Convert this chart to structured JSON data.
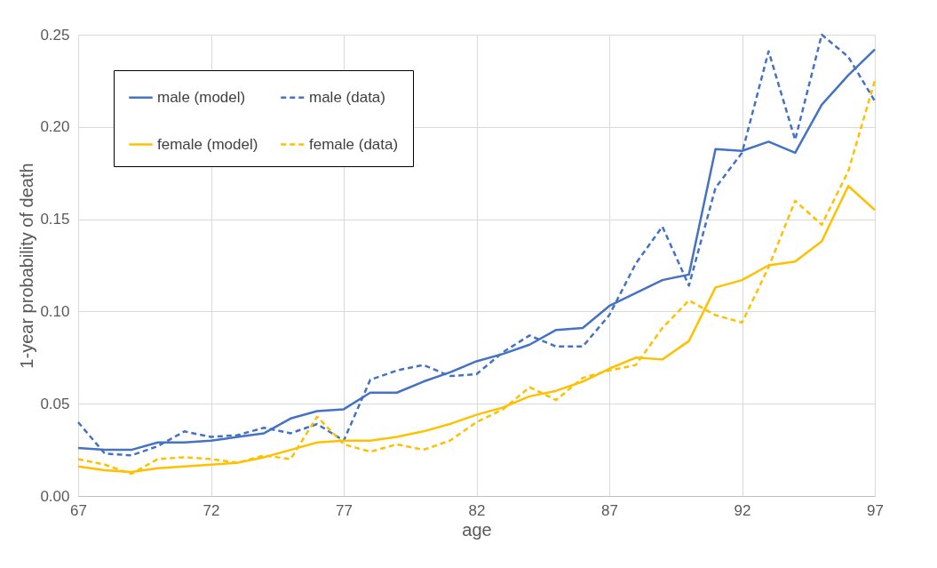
{
  "chart_data": {
    "type": "line",
    "xlabel": "age",
    "ylabel": "1-year probability of death",
    "x": [
      67,
      68,
      69,
      70,
      71,
      72,
      73,
      74,
      75,
      76,
      77,
      78,
      79,
      80,
      81,
      82,
      83,
      84,
      85,
      86,
      87,
      88,
      89,
      90,
      91,
      92,
      93,
      94,
      95,
      96,
      97
    ],
    "series": [
      {
        "name": "male (model)",
        "color": "#4472c4",
        "line_style": "solid",
        "values": [
          0.026,
          0.025,
          0.025,
          0.029,
          0.029,
          0.03,
          0.032,
          0.034,
          0.042,
          0.046,
          0.047,
          0.056,
          0.056,
          0.062,
          0.067,
          0.073,
          0.077,
          0.082,
          0.09,
          0.091,
          0.103,
          0.11,
          0.117,
          0.12,
          0.188,
          0.187,
          0.192,
          0.186,
          0.212,
          0.228,
          0.242
        ]
      },
      {
        "name": "male (data)",
        "color": "#4472c4",
        "line_style": "dashed",
        "values": [
          0.04,
          0.023,
          0.022,
          0.027,
          0.035,
          0.032,
          0.033,
          0.037,
          0.034,
          0.039,
          0.03,
          0.063,
          0.068,
          0.071,
          0.065,
          0.066,
          0.078,
          0.087,
          0.081,
          0.081,
          0.098,
          0.126,
          0.146,
          0.114,
          0.167,
          0.186,
          0.241,
          0.193,
          0.25,
          0.238,
          0.214
        ]
      },
      {
        "name": "female (model)",
        "color": "#ffc000",
        "line_style": "solid",
        "values": [
          0.016,
          0.014,
          0.013,
          0.015,
          0.016,
          0.017,
          0.018,
          0.021,
          0.025,
          0.029,
          0.03,
          0.03,
          0.032,
          0.035,
          0.039,
          0.044,
          0.048,
          0.054,
          0.057,
          0.062,
          0.069,
          0.075,
          0.074,
          0.084,
          0.113,
          0.117,
          0.125,
          0.127,
          0.138,
          0.168,
          0.155
        ]
      },
      {
        "name": "female (data)",
        "color": "#ffc000",
        "line_style": "dashed",
        "values": [
          0.02,
          0.017,
          0.012,
          0.02,
          0.021,
          0.02,
          0.018,
          0.022,
          0.02,
          0.043,
          0.028,
          0.024,
          0.028,
          0.025,
          0.03,
          0.04,
          0.047,
          0.059,
          0.052,
          0.064,
          0.068,
          0.071,
          0.091,
          0.106,
          0.098,
          0.094,
          0.124,
          0.16,
          0.147,
          0.176,
          0.225
        ]
      }
    ],
    "xlim": [
      67,
      97
    ],
    "xticks": [
      67,
      72,
      77,
      82,
      87,
      92,
      97
    ],
    "ylim": [
      0,
      0.25
    ],
    "yticks": [
      {
        "value": 0,
        "label": "0.00"
      },
      {
        "value": 0.05,
        "label": "0.05"
      },
      {
        "value": 0.1,
        "label": "0.10"
      },
      {
        "value": 0.15,
        "label": "0.15"
      },
      {
        "value": 0.2,
        "label": "0.20"
      },
      {
        "value": 0.25,
        "label": "0.25"
      }
    ],
    "grid": true,
    "legend": "top left",
    "marker": "none"
  }
}
